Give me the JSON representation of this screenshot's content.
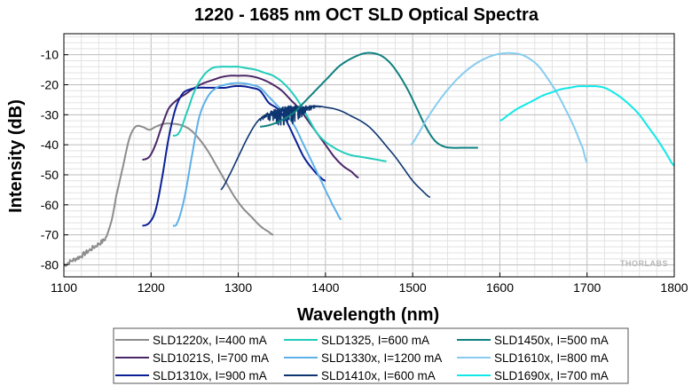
{
  "chart_data": {
    "type": "line",
    "title": "1220 - 1685 nm OCT SLD Optical Spectra",
    "xlabel": "Wavelength (nm)",
    "ylabel": "Intensity (dB)",
    "xlim": [
      1100,
      1800
    ],
    "ylim": [
      -84,
      -3
    ],
    "xticks": [
      1100,
      1200,
      1300,
      1400,
      1500,
      1600,
      1700,
      1800
    ],
    "yticks": [
      -80,
      -70,
      -60,
      -50,
      -40,
      -30,
      -20,
      -10
    ],
    "xtick_labels": [
      "1100",
      "1200",
      "1300",
      "1400",
      "1500",
      "1600",
      "1700",
      "1800"
    ],
    "ytick_labels": [
      "-80",
      "-70",
      "-60",
      "-50",
      "-40",
      "-30",
      "-20",
      "-10"
    ],
    "grid": true,
    "legend_position": "bottom",
    "watermark": "THORLABS",
    "series": [
      {
        "name": "SLD1220x, I=400 mA",
        "color": "#8c8c8c",
        "noise": "low",
        "x": [
          1100,
          1110,
          1120,
          1130,
          1140,
          1148,
          1155,
          1160,
          1168,
          1175,
          1182,
          1190,
          1198,
          1205,
          1215,
          1225,
          1235,
          1245,
          1255,
          1265,
          1275,
          1285,
          1295,
          1305,
          1315,
          1325,
          1335,
          1340
        ],
        "y": [
          -80,
          -78.5,
          -77,
          -75,
          -73,
          -71,
          -65,
          -57,
          -47,
          -38,
          -34,
          -34,
          -35,
          -34,
          -33,
          -33,
          -33.5,
          -35,
          -38,
          -42,
          -47,
          -52,
          -57,
          -61,
          -64,
          -67,
          -69,
          -70
        ]
      },
      {
        "name": "SLD1021S, I=700 mA",
        "color": "#4b2666",
        "noise": "none",
        "x": [
          1190,
          1198,
          1205,
          1212,
          1220,
          1230,
          1240,
          1250,
          1260,
          1270,
          1280,
          1290,
          1300,
          1310,
          1320,
          1330,
          1340,
          1350,
          1360,
          1370,
          1380,
          1390,
          1400,
          1410,
          1420,
          1430,
          1438
        ],
        "y": [
          -45,
          -44,
          -40,
          -34,
          -28,
          -25,
          -23,
          -21,
          -19.5,
          -18.5,
          -17.5,
          -17,
          -17,
          -17,
          -17.5,
          -18.5,
          -20,
          -22,
          -25,
          -28,
          -32,
          -36,
          -40,
          -44,
          -47,
          -49,
          -51
        ]
      },
      {
        "name": "SLD1310x, I=900 mA",
        "color": "#0a1f96",
        "noise": "none",
        "x": [
          1190,
          1198,
          1205,
          1212,
          1220,
          1228,
          1236,
          1245,
          1255,
          1265,
          1275,
          1285,
          1295,
          1305,
          1315,
          1325,
          1335,
          1345,
          1355,
          1365,
          1375,
          1385,
          1395,
          1400
        ],
        "y": [
          -67,
          -66,
          -62,
          -52,
          -38,
          -28,
          -23,
          -21.5,
          -21,
          -21,
          -21,
          -21,
          -20.5,
          -20.5,
          -21,
          -22,
          -26,
          -28,
          -32,
          -38,
          -44,
          -48,
          -51,
          -52
        ]
      },
      {
        "name": "SLD1325, I=600 mA",
        "color": "#22ccbb",
        "noise": "none",
        "x": [
          1225,
          1232,
          1240,
          1250,
          1260,
          1270,
          1280,
          1290,
          1300,
          1310,
          1320,
          1330,
          1340,
          1350,
          1360,
          1370,
          1380,
          1390,
          1400,
          1410,
          1420,
          1430,
          1440,
          1450,
          1460,
          1470
        ],
        "y": [
          -37,
          -36,
          -30,
          -22,
          -17,
          -14.5,
          -14,
          -14,
          -14,
          -14.5,
          -15,
          -16,
          -17,
          -19,
          -22,
          -26,
          -31,
          -36,
          -39,
          -41,
          -42.5,
          -43.5,
          -44,
          -44.5,
          -45,
          -45.5
        ]
      },
      {
        "name": "SLD1330x, I=1200 mA",
        "color": "#5db0e8",
        "noise": "none",
        "x": [
          1225,
          1230,
          1238,
          1246,
          1255,
          1265,
          1275,
          1285,
          1295,
          1305,
          1315,
          1325,
          1335,
          1345,
          1355,
          1365,
          1375,
          1385,
          1395,
          1405,
          1412,
          1418
        ],
        "y": [
          -67,
          -66,
          -58,
          -45,
          -31,
          -24,
          -21,
          -20,
          -19.5,
          -19.5,
          -20,
          -21,
          -24,
          -27,
          -30,
          -34,
          -40,
          -46,
          -52,
          -58,
          -62,
          -65
        ]
      },
      {
        "name": "SLD1410x, I=600 mA",
        "color": "#0d3570",
        "noise": "high",
        "x": [
          1280,
          1290,
          1300,
          1310,
          1320,
          1330,
          1340,
          1350,
          1360,
          1370,
          1380,
          1390,
          1400,
          1410,
          1420,
          1430,
          1440,
          1450,
          1460,
          1470,
          1480,
          1490,
          1500,
          1510,
          1520
        ],
        "y": [
          -55,
          -50,
          -44,
          -38,
          -33,
          -30,
          -28.5,
          -27.5,
          -27,
          -27,
          -27,
          -27,
          -27.5,
          -28,
          -29,
          -30.5,
          -32,
          -34,
          -37,
          -40.5,
          -44,
          -48,
          -52,
          -55,
          -57.5
        ]
      },
      {
        "name": "SLD1450x, I=500 mA",
        "color": "#0f8080",
        "noise": "none",
        "x": [
          1325,
          1335,
          1345,
          1355,
          1365,
          1375,
          1385,
          1395,
          1405,
          1415,
          1425,
          1435,
          1445,
          1455,
          1465,
          1475,
          1485,
          1495,
          1505,
          1515,
          1525,
          1535,
          1545,
          1555,
          1565,
          1575
        ],
        "y": [
          -34,
          -33.5,
          -32.5,
          -31,
          -29,
          -26,
          -23,
          -20,
          -17,
          -14,
          -12,
          -10.5,
          -9.5,
          -9.5,
          -10.5,
          -13,
          -17,
          -22,
          -28,
          -34,
          -38.5,
          -40.5,
          -41,
          -41,
          -41,
          -41
        ]
      },
      {
        "name": "SLD1610x, I=800 mA",
        "color": "#87ccf0",
        "noise": "none",
        "x": [
          1498,
          1505,
          1515,
          1525,
          1535,
          1545,
          1555,
          1565,
          1575,
          1585,
          1595,
          1605,
          1615,
          1625,
          1635,
          1645,
          1655,
          1665,
          1675,
          1685,
          1695,
          1700
        ],
        "y": [
          -40,
          -37,
          -32,
          -27.5,
          -23.5,
          -20,
          -17,
          -14.5,
          -12.5,
          -11,
          -10,
          -9.5,
          -9.5,
          -10,
          -11.5,
          -14,
          -18,
          -22.5,
          -28,
          -34,
          -41,
          -46
        ]
      },
      {
        "name": "SLD1690x, I=700 mA",
        "color": "#10e8e8",
        "noise": "none",
        "x": [
          1600,
          1610,
          1620,
          1630,
          1640,
          1650,
          1660,
          1670,
          1680,
          1690,
          1700,
          1710,
          1720,
          1730,
          1740,
          1750,
          1760,
          1770,
          1780,
          1790,
          1800
        ],
        "y": [
          -32,
          -30,
          -28,
          -26.5,
          -25,
          -23.5,
          -22.5,
          -21.5,
          -21,
          -20.5,
          -20.5,
          -20.5,
          -21,
          -22.5,
          -24.5,
          -27,
          -30,
          -34,
          -38,
          -42.5,
          -47
        ]
      }
    ]
  }
}
